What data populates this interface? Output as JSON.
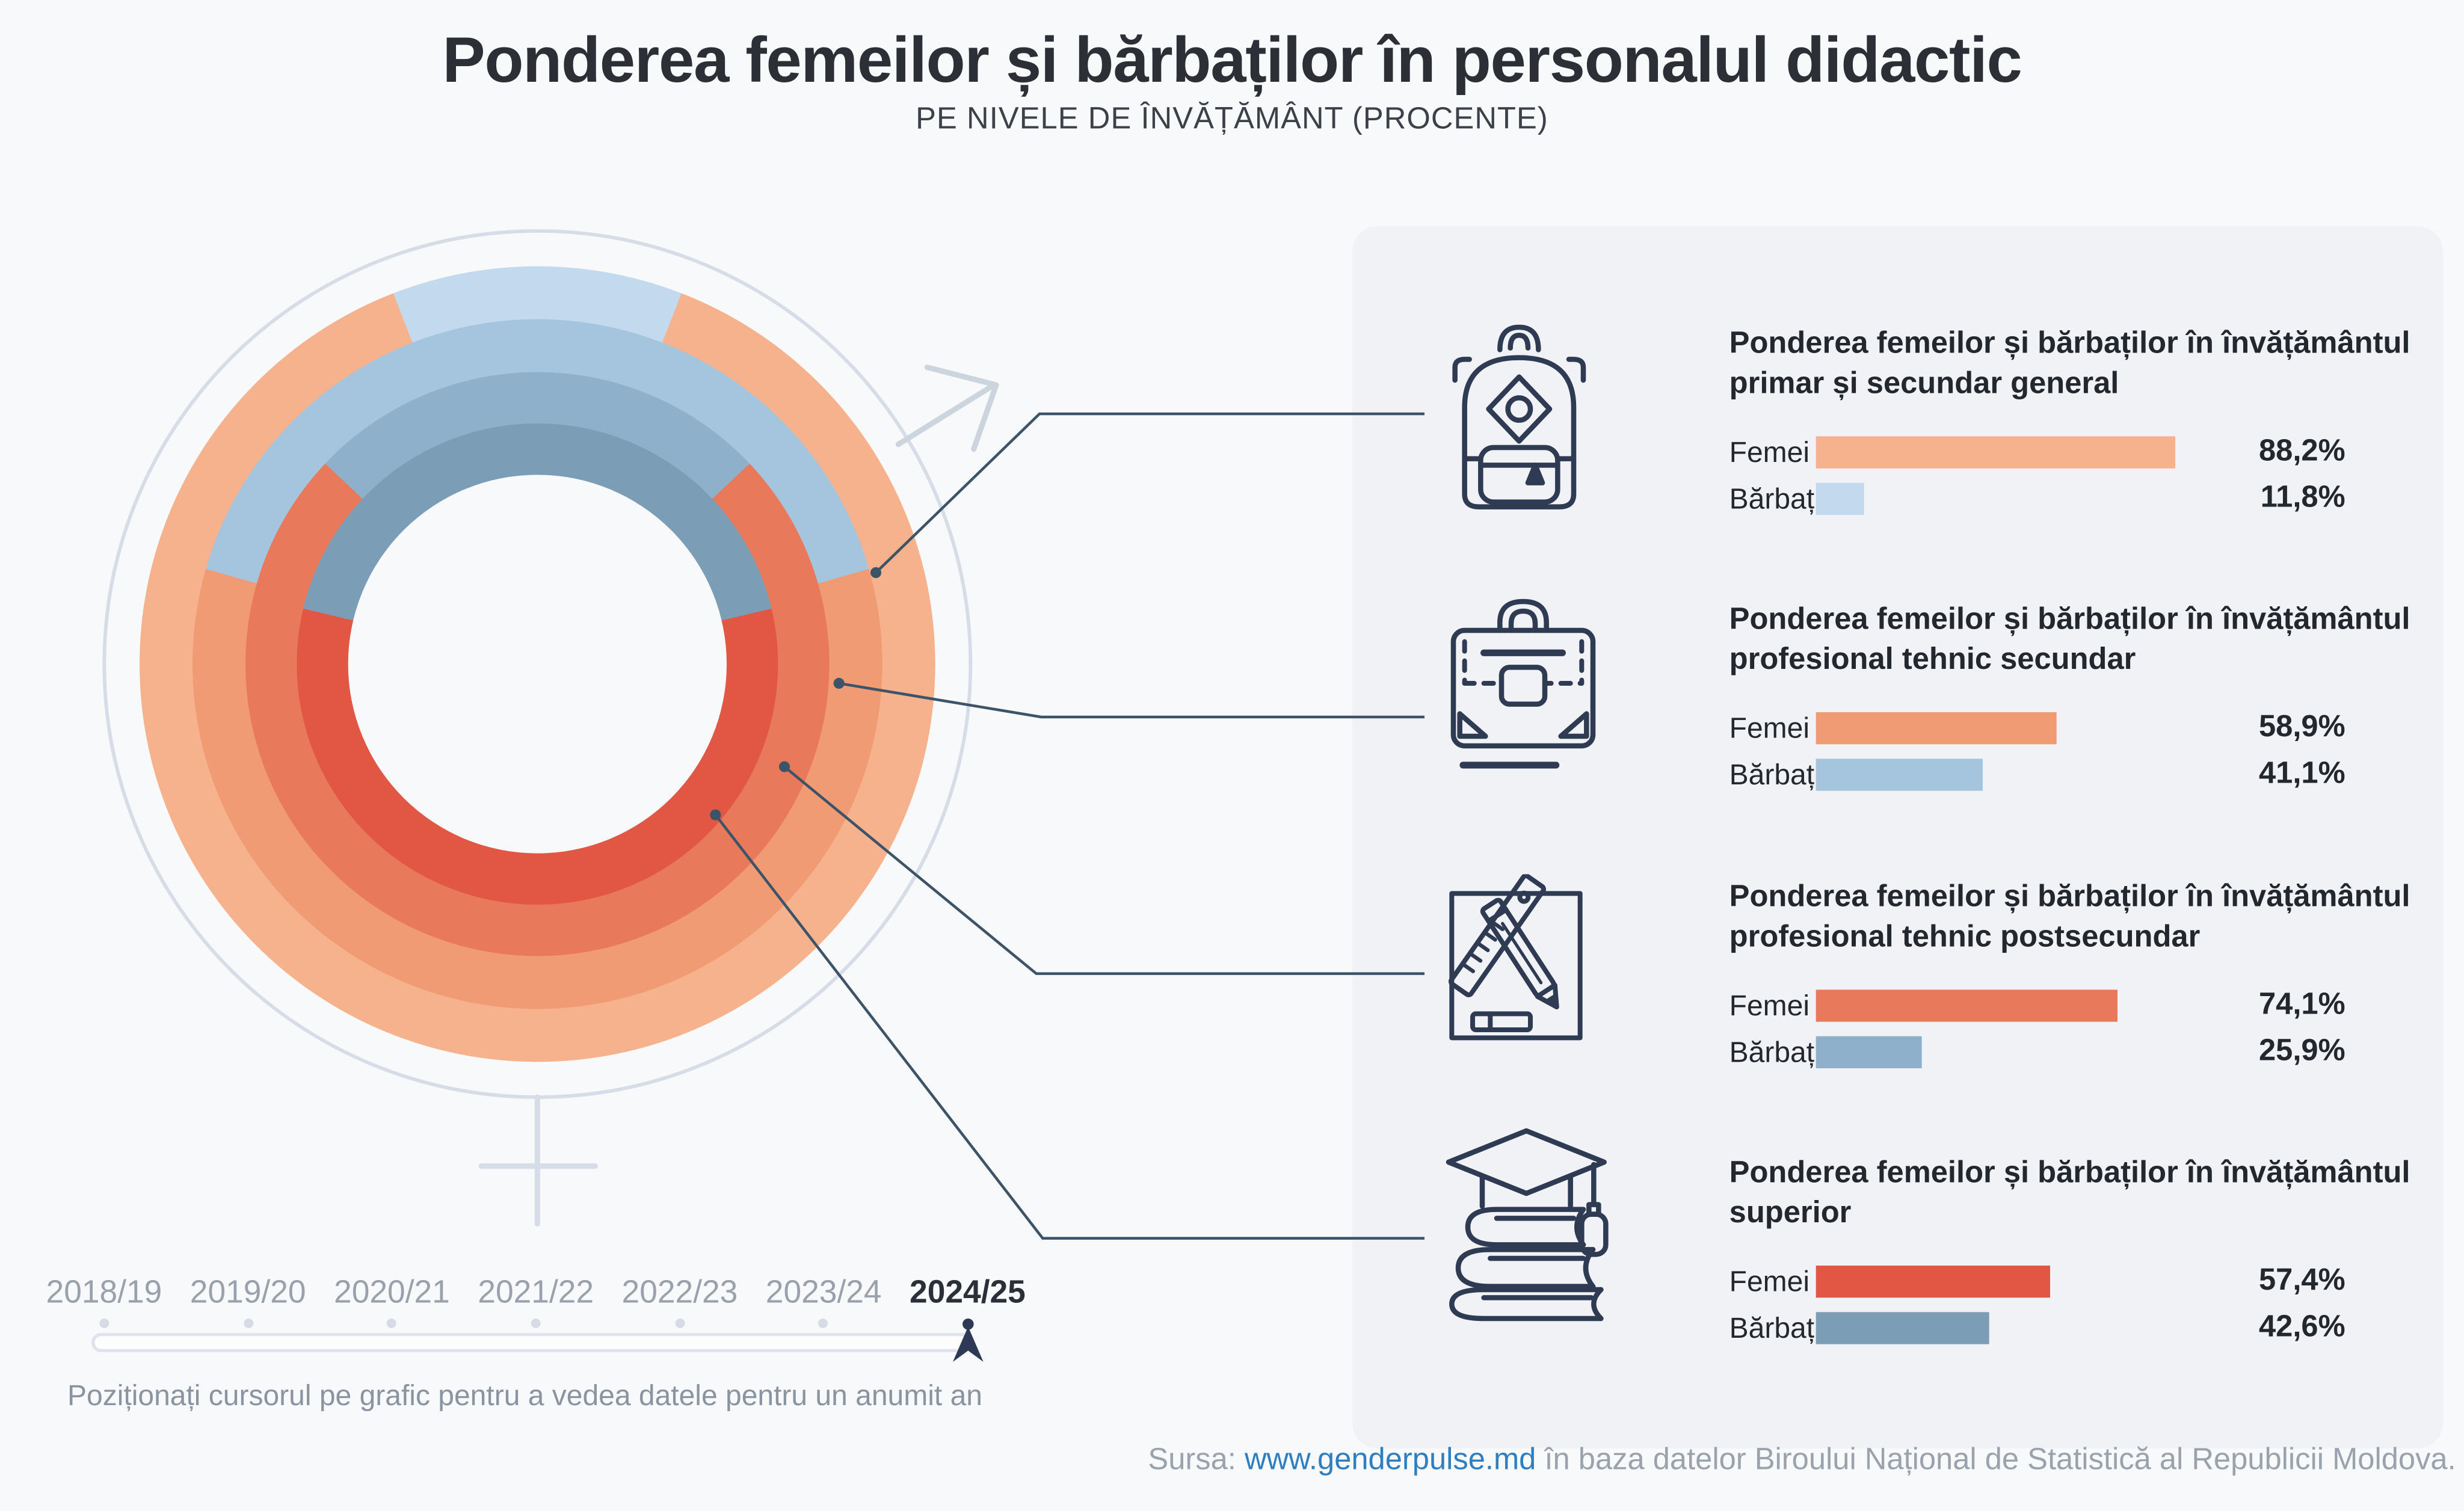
{
  "title": "Ponderea femeilor și bărbaților în personalul didactic",
  "subtitle": "PE NIVELE DE ÎNVĂȚĂMÂNT (PROCENTE)",
  "labels": {
    "femei": "Femei",
    "barbati": "Bărbați"
  },
  "sections": [
    {
      "icon": "backpack-icon",
      "title": "Ponderea femeilor și bărbaților în învățământul primar și secundar general",
      "femei": {
        "value": 88.2,
        "display": "88,2%"
      },
      "barbati": {
        "value": 11.8,
        "display": "11,8%"
      },
      "femei_color": "#f5b28c",
      "barbati_color": "#c3daee"
    },
    {
      "icon": "briefcase-icon",
      "title": "Ponderea femeilor și bărbaților în învățământul profesional tehnic secundar",
      "femei": {
        "value": 58.9,
        "display": "58,9%"
      },
      "barbati": {
        "value": 41.1,
        "display": "41,1%"
      },
      "femei_color": "#f09b73",
      "barbati_color": "#a5c5df"
    },
    {
      "icon": "pencil-ruler-icon",
      "title": "Ponderea femeilor și bărbaților în învățământul profesional tehnic postsecundar",
      "femei": {
        "value": 74.1,
        "display": "74,1%"
      },
      "barbati": {
        "value": 25.9,
        "display": "25,9%"
      },
      "femei_color": "#e87a5b",
      "barbati_color": "#8fb0ca"
    },
    {
      "icon": "graduation-cap-icon",
      "title": "Ponderea femeilor și bărbaților în învățământul superior",
      "femei": {
        "value": 57.4,
        "display": "57,4%"
      },
      "barbati": {
        "value": 42.6,
        "display": "42,6%"
      },
      "femei_color": "#e25743",
      "barbati_color": "#7c9db6"
    }
  ],
  "chart_data": {
    "type": "donut",
    "title": "Ponderea femeilor și bărbaților în personalul didactic",
    "subtitle": "PE NIVELE DE ÎNVĂȚĂMÂNT (PROCENTE)",
    "selected_year": "2024/25",
    "legend_note": "male (Bărbați) segment of each ring is centered at 12 o'clock; rest of ring is female (Femei)",
    "rings": [
      {
        "position": "outer",
        "level": "învățământul primar și secundar general",
        "femei": 88.2,
        "barbati": 11.8,
        "femei_color": "#f5b28c",
        "barbati_color": "#c3daee"
      },
      {
        "position": "second",
        "level": "învățământul profesional tehnic secundar",
        "femei": 58.9,
        "barbati": 41.1,
        "femei_color": "#f09b73",
        "barbati_color": "#a5c5df"
      },
      {
        "position": "third",
        "level": "învățământul profesional tehnic postsecundar",
        "femei": 74.1,
        "barbati": 25.9,
        "femei_color": "#e87a5b",
        "barbati_color": "#8fb0ca"
      },
      {
        "position": "inner",
        "level": "învățământul superior",
        "femei": 57.4,
        "barbati": 42.6,
        "femei_color": "#e25743",
        "barbati_color": "#7c9db6"
      }
    ]
  },
  "timeline": {
    "years": [
      {
        "label": "2018/19",
        "active": false
      },
      {
        "label": "2019/20",
        "active": false
      },
      {
        "label": "2020/21",
        "active": false
      },
      {
        "label": "2021/22",
        "active": false
      },
      {
        "label": "2022/23",
        "active": false
      },
      {
        "label": "2023/24",
        "active": false
      },
      {
        "label": "2024/25",
        "active": true
      }
    ]
  },
  "instruction": "Poziționați cursorul pe grafic pentru a vedea datele pentru un anumit an",
  "footer": {
    "prefix": "Sursa:",
    "link": "www.genderpulse.md",
    "suffix": "în baza datelor Biroului Național de Statistică al Republicii Moldova."
  },
  "colors": {
    "accent_dark": "#2e3a55",
    "connector": "#3d5368",
    "link": "#2e7fc2",
    "panel_bg": "#f0f2f6",
    "page_bg": "#f8f9fa"
  }
}
